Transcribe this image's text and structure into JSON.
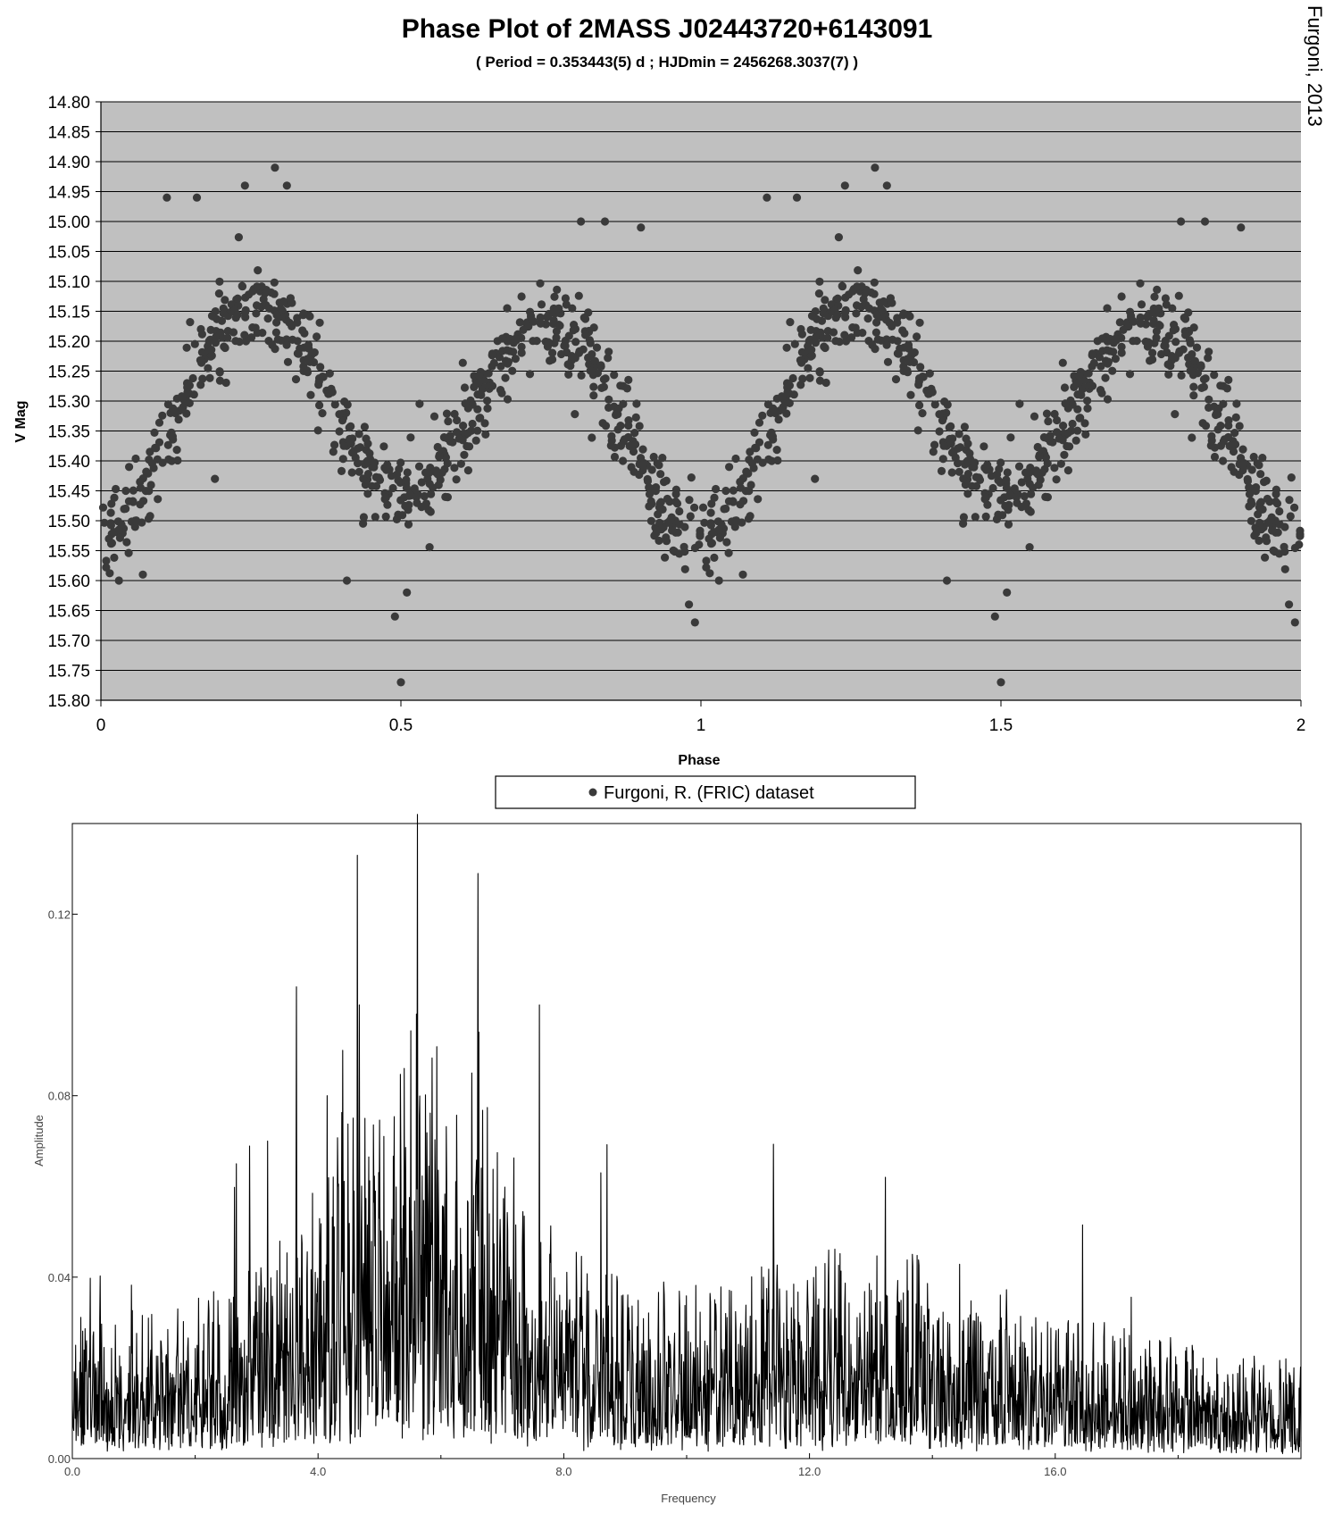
{
  "chart_data": [
    {
      "type": "scatter",
      "title": "Phase Plot of 2MASS J02443720+6143091",
      "subtitle": "( Period = 0.353443(5) d ; HJDmin = 2456268.3037(7) )",
      "credit": "Furgoni, 2013",
      "xlabel": "Phase",
      "ylabel": "V Mag",
      "xlim": [
        0,
        2
      ],
      "ylim": [
        15.8,
        14.8
      ],
      "y_inverted": true,
      "x_ticks": [
        "0",
        "0.5",
        "1",
        "1.5",
        "2"
      ],
      "y_ticks": [
        "14.80",
        "14.85",
        "14.90",
        "14.95",
        "15.00",
        "15.05",
        "15.10",
        "15.15",
        "15.20",
        "15.25",
        "15.30",
        "15.35",
        "15.40",
        "15.45",
        "15.50",
        "15.55",
        "15.60",
        "15.65",
        "15.70",
        "15.75",
        "15.80"
      ],
      "grid": "horizontal",
      "legend_position": "bottom-center",
      "series": [
        {
          "name": "Furgoni, R. (FRIC) dataset",
          "color": "#3a3a3a",
          "model": {
            "mean": 15.32,
            "harmonics": [
              {
                "order": 1,
                "cos": 0.035,
                "sin": -0.015
              },
              {
                "order": 2,
                "cos": 0.165,
                "sin": 0.0
              }
            ],
            "scatter_sd": 0.06,
            "points_per_cycle": 700
          },
          "notable_points": [
            {
              "x": 0.11,
              "y": 14.96
            },
            {
              "x": 0.16,
              "y": 14.96
            },
            {
              "x": 0.24,
              "y": 14.94
            },
            {
              "x": 0.29,
              "y": 14.91
            },
            {
              "x": 0.31,
              "y": 14.94
            },
            {
              "x": 0.49,
              "y": 15.66
            },
            {
              "x": 0.5,
              "y": 15.77
            },
            {
              "x": 0.51,
              "y": 15.62
            },
            {
              "x": 0.8,
              "y": 15.0
            },
            {
              "x": 0.84,
              "y": 15.0
            },
            {
              "x": 0.9,
              "y": 15.01
            },
            {
              "x": 0.98,
              "y": 15.64
            },
            {
              "x": 0.99,
              "y": 15.67
            },
            {
              "x": 0.41,
              "y": 15.6
            },
            {
              "x": 0.03,
              "y": 15.6
            },
            {
              "x": 0.07,
              "y": 15.59
            },
            {
              "x": 0.19,
              "y": 15.43
            },
            {
              "x": 0.87,
              "y": 15.4
            }
          ]
        }
      ]
    },
    {
      "type": "line",
      "xlabel": "Frequency",
      "ylabel": "Amplitude",
      "xlim": [
        0,
        20
      ],
      "ylim": [
        0,
        0.14
      ],
      "x_ticks": [
        "0.0",
        "4.0",
        "8.0",
        "12.0",
        "16.0"
      ],
      "y_ticks": [
        "0.00",
        "0.04",
        "0.08",
        "0.12"
      ],
      "grid": "none",
      "series": [
        {
          "name": "",
          "color": "#000000",
          "model": {
            "samples": 2600,
            "baseline": 0.013,
            "envelope_peak_center": 5.6,
            "envelope_peak_sigma": 1.55,
            "envelope_peak_amp": 0.024,
            "tail_level": 0.0
          },
          "peaks": [
            {
              "x": 2.67,
              "y": 0.065
            },
            {
              "x": 3.65,
              "y": 0.104
            },
            {
              "x": 4.64,
              "y": 0.133
            },
            {
              "x": 4.67,
              "y": 0.1
            },
            {
              "x": 4.4,
              "y": 0.09
            },
            {
              "x": 5.62,
              "y": 0.142
            },
            {
              "x": 5.6,
              "y": 0.098
            },
            {
              "x": 5.4,
              "y": 0.086
            },
            {
              "x": 6.6,
              "y": 0.129
            },
            {
              "x": 6.62,
              "y": 0.094
            },
            {
              "x": 6.5,
              "y": 0.085
            },
            {
              "x": 7.6,
              "y": 0.1
            },
            {
              "x": 8.6,
              "y": 0.063
            },
            {
              "x": 11.25,
              "y": 0.04
            },
            {
              "x": 12.25,
              "y": 0.043
            },
            {
              "x": 13.25,
              "y": 0.036
            },
            {
              "x": 14.25,
              "y": 0.03
            },
            {
              "x": 15.25,
              "y": 0.027
            },
            {
              "x": 19.75,
              "y": 0.022
            },
            {
              "x": 3.18,
              "y": 0.07
            },
            {
              "x": 4.15,
              "y": 0.08
            }
          ]
        }
      ]
    }
  ]
}
